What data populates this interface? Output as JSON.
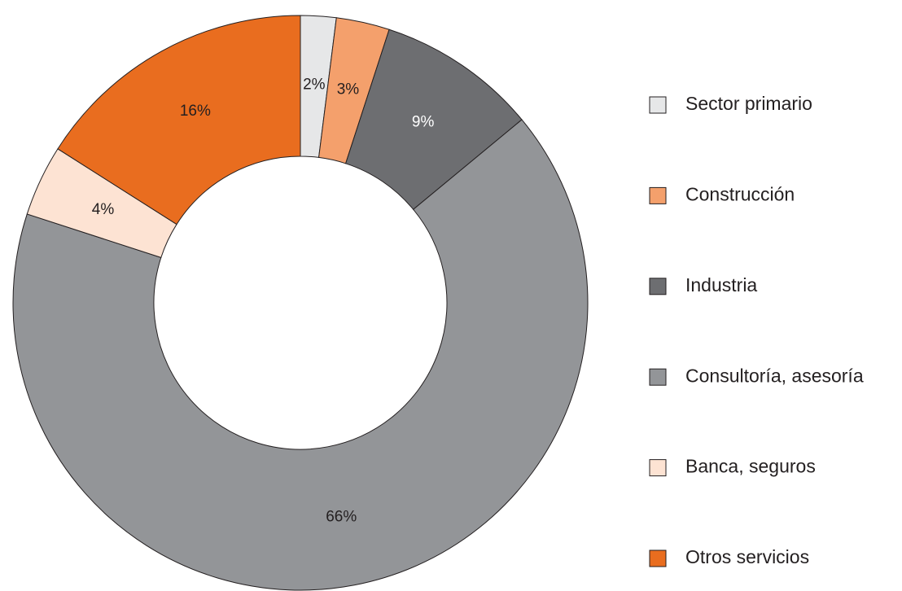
{
  "chart_data": {
    "type": "donut",
    "categories": [
      "Sector primario",
      "Construcción",
      "Industria",
      "Consultoría, asesoría",
      "Banca, seguros",
      "Otros servicios"
    ],
    "values": [
      2,
      3,
      9,
      66,
      4,
      16
    ],
    "value_labels": [
      "2%",
      "3%",
      "9%",
      "66%",
      "4%",
      "16%"
    ],
    "colors": [
      "#e6e7e8",
      "#f4a06c",
      "#6d6e71",
      "#939598",
      "#fde3d3",
      "#e96d1f"
    ],
    "legend": "right"
  }
}
